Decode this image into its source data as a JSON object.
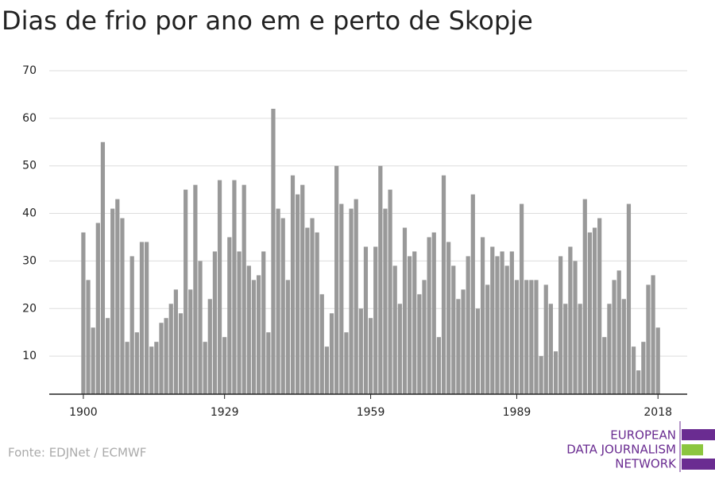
{
  "chart_data": {
    "type": "bar",
    "title": "Dias de frio por ano em e perto de Skopje",
    "source": "Fonte: EDJNet / ECMWF",
    "logo": [
      "EUROPEAN",
      "DATA JOURNALISM",
      "NETWORK"
    ],
    "color": "#999999",
    "x": [
      1900,
      1901,
      1902,
      1903,
      1904,
      1905,
      1906,
      1907,
      1908,
      1909,
      1910,
      1911,
      1912,
      1913,
      1914,
      1915,
      1916,
      1917,
      1918,
      1919,
      1920,
      1921,
      1922,
      1923,
      1924,
      1925,
      1926,
      1927,
      1928,
      1929,
      1930,
      1931,
      1932,
      1933,
      1934,
      1935,
      1936,
      1937,
      1938,
      1939,
      1940,
      1941,
      1942,
      1943,
      1944,
      1945,
      1946,
      1947,
      1948,
      1949,
      1950,
      1951,
      1952,
      1953,
      1954,
      1955,
      1956,
      1957,
      1958,
      1959,
      1960,
      1961,
      1962,
      1963,
      1964,
      1965,
      1966,
      1967,
      1968,
      1969,
      1970,
      1971,
      1972,
      1973,
      1974,
      1975,
      1976,
      1977,
      1978,
      1979,
      1980,
      1981,
      1982,
      1983,
      1984,
      1985,
      1986,
      1987,
      1988,
      1989,
      1990,
      1991,
      1992,
      1993,
      1994,
      1995,
      1996,
      1997,
      1998,
      1999,
      2000,
      2001,
      2002,
      2003,
      2004,
      2005,
      2006,
      2007,
      2008,
      2009,
      2010,
      2011,
      2012,
      2013,
      2014,
      2015,
      2016,
      2017,
      2018
    ],
    "values": [
      36,
      26,
      16,
      38,
      55,
      18,
      41,
      43,
      39,
      13,
      31,
      15,
      34,
      34,
      12,
      13,
      17,
      18,
      21,
      24,
      19,
      45,
      24,
      46,
      30,
      13,
      22,
      32,
      47,
      14,
      35,
      47,
      32,
      46,
      29,
      26,
      27,
      32,
      15,
      62,
      41,
      39,
      26,
      48,
      44,
      46,
      37,
      39,
      36,
      23,
      12,
      19,
      50,
      42,
      15,
      41,
      43,
      20,
      33,
      18,
      33,
      50,
      41,
      45,
      29,
      21,
      37,
      31,
      32,
      23,
      26,
      35,
      36,
      14,
      48,
      34,
      29,
      22,
      24,
      31,
      44,
      20,
      35,
      25,
      33,
      31,
      32,
      29,
      32,
      26,
      42,
      26,
      26,
      26,
      10,
      25,
      21,
      11,
      31,
      21,
      33,
      30,
      21,
      43,
      36,
      37,
      39,
      14,
      21,
      26,
      28,
      22,
      42,
      12,
      7,
      13,
      25,
      27,
      16
    ],
    "xlim": [
      1893,
      2024
    ],
    "xticks": [
      1900,
      1929,
      1959,
      1989,
      2018
    ],
    "ylim": [
      2,
      70
    ],
    "yticks": [
      10,
      20,
      30,
      40,
      50,
      60,
      70
    ],
    "grid": true
  }
}
